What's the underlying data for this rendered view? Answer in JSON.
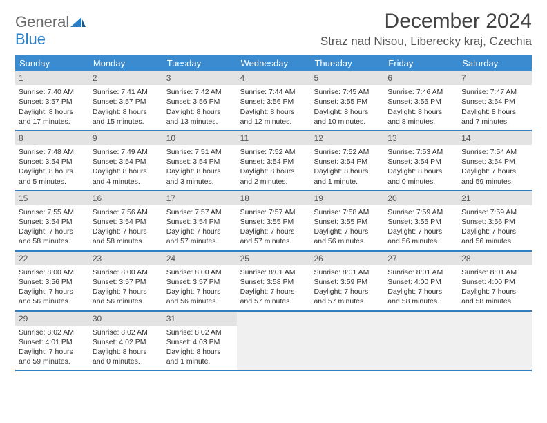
{
  "logo": {
    "lines": [
      "General",
      "Blue"
    ],
    "gray_color": "#6b6b6b",
    "blue_color": "#2a7fc9"
  },
  "title": "December 2024",
  "location": "Straz nad Nisou, Liberecky kraj, Czechia",
  "colors": {
    "header_bg": "#3a8bd0",
    "header_text": "#ffffff",
    "daynum_bg": "#e3e3e3",
    "daynum_text": "#555555",
    "row_border": "#2f7fc2",
    "body_text": "#333333",
    "empty_bg": "#f0f0f0"
  },
  "day_names": [
    "Sunday",
    "Monday",
    "Tuesday",
    "Wednesday",
    "Thursday",
    "Friday",
    "Saturday"
  ],
  "weeks": [
    [
      {
        "n": "1",
        "sr": "Sunrise: 7:40 AM",
        "ss": "Sunset: 3:57 PM",
        "d1": "Daylight: 8 hours",
        "d2": "and 17 minutes."
      },
      {
        "n": "2",
        "sr": "Sunrise: 7:41 AM",
        "ss": "Sunset: 3:57 PM",
        "d1": "Daylight: 8 hours",
        "d2": "and 15 minutes."
      },
      {
        "n": "3",
        "sr": "Sunrise: 7:42 AM",
        "ss": "Sunset: 3:56 PM",
        "d1": "Daylight: 8 hours",
        "d2": "and 13 minutes."
      },
      {
        "n": "4",
        "sr": "Sunrise: 7:44 AM",
        "ss": "Sunset: 3:56 PM",
        "d1": "Daylight: 8 hours",
        "d2": "and 12 minutes."
      },
      {
        "n": "5",
        "sr": "Sunrise: 7:45 AM",
        "ss": "Sunset: 3:55 PM",
        "d1": "Daylight: 8 hours",
        "d2": "and 10 minutes."
      },
      {
        "n": "6",
        "sr": "Sunrise: 7:46 AM",
        "ss": "Sunset: 3:55 PM",
        "d1": "Daylight: 8 hours",
        "d2": "and 8 minutes."
      },
      {
        "n": "7",
        "sr": "Sunrise: 7:47 AM",
        "ss": "Sunset: 3:54 PM",
        "d1": "Daylight: 8 hours",
        "d2": "and 7 minutes."
      }
    ],
    [
      {
        "n": "8",
        "sr": "Sunrise: 7:48 AM",
        "ss": "Sunset: 3:54 PM",
        "d1": "Daylight: 8 hours",
        "d2": "and 5 minutes."
      },
      {
        "n": "9",
        "sr": "Sunrise: 7:49 AM",
        "ss": "Sunset: 3:54 PM",
        "d1": "Daylight: 8 hours",
        "d2": "and 4 minutes."
      },
      {
        "n": "10",
        "sr": "Sunrise: 7:51 AM",
        "ss": "Sunset: 3:54 PM",
        "d1": "Daylight: 8 hours",
        "d2": "and 3 minutes."
      },
      {
        "n": "11",
        "sr": "Sunrise: 7:52 AM",
        "ss": "Sunset: 3:54 PM",
        "d1": "Daylight: 8 hours",
        "d2": "and 2 minutes."
      },
      {
        "n": "12",
        "sr": "Sunrise: 7:52 AM",
        "ss": "Sunset: 3:54 PM",
        "d1": "Daylight: 8 hours",
        "d2": "and 1 minute."
      },
      {
        "n": "13",
        "sr": "Sunrise: 7:53 AM",
        "ss": "Sunset: 3:54 PM",
        "d1": "Daylight: 8 hours",
        "d2": "and 0 minutes."
      },
      {
        "n": "14",
        "sr": "Sunrise: 7:54 AM",
        "ss": "Sunset: 3:54 PM",
        "d1": "Daylight: 7 hours",
        "d2": "and 59 minutes."
      }
    ],
    [
      {
        "n": "15",
        "sr": "Sunrise: 7:55 AM",
        "ss": "Sunset: 3:54 PM",
        "d1": "Daylight: 7 hours",
        "d2": "and 58 minutes."
      },
      {
        "n": "16",
        "sr": "Sunrise: 7:56 AM",
        "ss": "Sunset: 3:54 PM",
        "d1": "Daylight: 7 hours",
        "d2": "and 58 minutes."
      },
      {
        "n": "17",
        "sr": "Sunrise: 7:57 AM",
        "ss": "Sunset: 3:54 PM",
        "d1": "Daylight: 7 hours",
        "d2": "and 57 minutes."
      },
      {
        "n": "18",
        "sr": "Sunrise: 7:57 AM",
        "ss": "Sunset: 3:55 PM",
        "d1": "Daylight: 7 hours",
        "d2": "and 57 minutes."
      },
      {
        "n": "19",
        "sr": "Sunrise: 7:58 AM",
        "ss": "Sunset: 3:55 PM",
        "d1": "Daylight: 7 hours",
        "d2": "and 56 minutes."
      },
      {
        "n": "20",
        "sr": "Sunrise: 7:59 AM",
        "ss": "Sunset: 3:55 PM",
        "d1": "Daylight: 7 hours",
        "d2": "and 56 minutes."
      },
      {
        "n": "21",
        "sr": "Sunrise: 7:59 AM",
        "ss": "Sunset: 3:56 PM",
        "d1": "Daylight: 7 hours",
        "d2": "and 56 minutes."
      }
    ],
    [
      {
        "n": "22",
        "sr": "Sunrise: 8:00 AM",
        "ss": "Sunset: 3:56 PM",
        "d1": "Daylight: 7 hours",
        "d2": "and 56 minutes."
      },
      {
        "n": "23",
        "sr": "Sunrise: 8:00 AM",
        "ss": "Sunset: 3:57 PM",
        "d1": "Daylight: 7 hours",
        "d2": "and 56 minutes."
      },
      {
        "n": "24",
        "sr": "Sunrise: 8:00 AM",
        "ss": "Sunset: 3:57 PM",
        "d1": "Daylight: 7 hours",
        "d2": "and 56 minutes."
      },
      {
        "n": "25",
        "sr": "Sunrise: 8:01 AM",
        "ss": "Sunset: 3:58 PM",
        "d1": "Daylight: 7 hours",
        "d2": "and 57 minutes."
      },
      {
        "n": "26",
        "sr": "Sunrise: 8:01 AM",
        "ss": "Sunset: 3:59 PM",
        "d1": "Daylight: 7 hours",
        "d2": "and 57 minutes."
      },
      {
        "n": "27",
        "sr": "Sunrise: 8:01 AM",
        "ss": "Sunset: 4:00 PM",
        "d1": "Daylight: 7 hours",
        "d2": "and 58 minutes."
      },
      {
        "n": "28",
        "sr": "Sunrise: 8:01 AM",
        "ss": "Sunset: 4:00 PM",
        "d1": "Daylight: 7 hours",
        "d2": "and 58 minutes."
      }
    ],
    [
      {
        "n": "29",
        "sr": "Sunrise: 8:02 AM",
        "ss": "Sunset: 4:01 PM",
        "d1": "Daylight: 7 hours",
        "d2": "and 59 minutes."
      },
      {
        "n": "30",
        "sr": "Sunrise: 8:02 AM",
        "ss": "Sunset: 4:02 PM",
        "d1": "Daylight: 8 hours",
        "d2": "and 0 minutes."
      },
      {
        "n": "31",
        "sr": "Sunrise: 8:02 AM",
        "ss": "Sunset: 4:03 PM",
        "d1": "Daylight: 8 hours",
        "d2": "and 1 minute."
      },
      null,
      null,
      null,
      null
    ]
  ]
}
